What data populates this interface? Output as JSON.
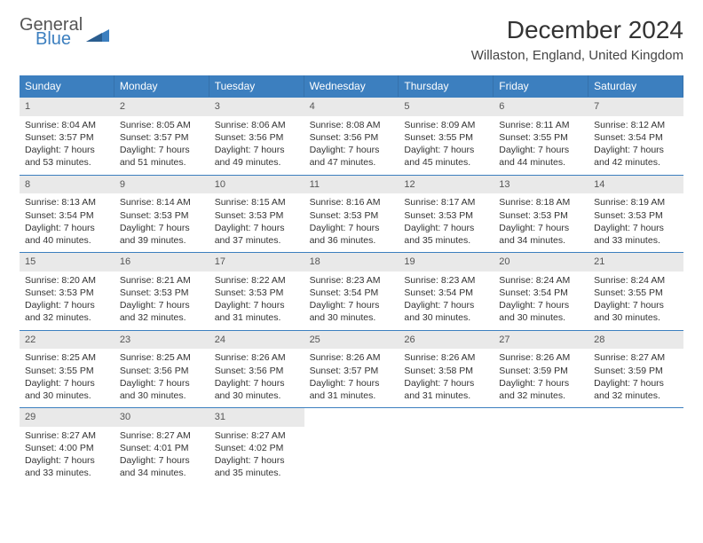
{
  "logo": {
    "general": "General",
    "blue": "Blue"
  },
  "title": "December 2024",
  "location": "Willaston, England, United Kingdom",
  "colors": {
    "header_bg": "#3c7fbf",
    "header_text": "#ffffff",
    "daynum_bg": "#e9e9e9",
    "border": "#3c7fbf",
    "body_text": "#333333"
  },
  "daysOfWeek": [
    "Sunday",
    "Monday",
    "Tuesday",
    "Wednesday",
    "Thursday",
    "Friday",
    "Saturday"
  ],
  "cells": [
    {
      "n": "1",
      "sr": "8:04 AM",
      "ss": "3:57 PM",
      "dl": "7 hours and 53 minutes."
    },
    {
      "n": "2",
      "sr": "8:05 AM",
      "ss": "3:57 PM",
      "dl": "7 hours and 51 minutes."
    },
    {
      "n": "3",
      "sr": "8:06 AM",
      "ss": "3:56 PM",
      "dl": "7 hours and 49 minutes."
    },
    {
      "n": "4",
      "sr": "8:08 AM",
      "ss": "3:56 PM",
      "dl": "7 hours and 47 minutes."
    },
    {
      "n": "5",
      "sr": "8:09 AM",
      "ss": "3:55 PM",
      "dl": "7 hours and 45 minutes."
    },
    {
      "n": "6",
      "sr": "8:11 AM",
      "ss": "3:55 PM",
      "dl": "7 hours and 44 minutes."
    },
    {
      "n": "7",
      "sr": "8:12 AM",
      "ss": "3:54 PM",
      "dl": "7 hours and 42 minutes."
    },
    {
      "n": "8",
      "sr": "8:13 AM",
      "ss": "3:54 PM",
      "dl": "7 hours and 40 minutes."
    },
    {
      "n": "9",
      "sr": "8:14 AM",
      "ss": "3:53 PM",
      "dl": "7 hours and 39 minutes."
    },
    {
      "n": "10",
      "sr": "8:15 AM",
      "ss": "3:53 PM",
      "dl": "7 hours and 37 minutes."
    },
    {
      "n": "11",
      "sr": "8:16 AM",
      "ss": "3:53 PM",
      "dl": "7 hours and 36 minutes."
    },
    {
      "n": "12",
      "sr": "8:17 AM",
      "ss": "3:53 PM",
      "dl": "7 hours and 35 minutes."
    },
    {
      "n": "13",
      "sr": "8:18 AM",
      "ss": "3:53 PM",
      "dl": "7 hours and 34 minutes."
    },
    {
      "n": "14",
      "sr": "8:19 AM",
      "ss": "3:53 PM",
      "dl": "7 hours and 33 minutes."
    },
    {
      "n": "15",
      "sr": "8:20 AM",
      "ss": "3:53 PM",
      "dl": "7 hours and 32 minutes."
    },
    {
      "n": "16",
      "sr": "8:21 AM",
      "ss": "3:53 PM",
      "dl": "7 hours and 32 minutes."
    },
    {
      "n": "17",
      "sr": "8:22 AM",
      "ss": "3:53 PM",
      "dl": "7 hours and 31 minutes."
    },
    {
      "n": "18",
      "sr": "8:23 AM",
      "ss": "3:54 PM",
      "dl": "7 hours and 30 minutes."
    },
    {
      "n": "19",
      "sr": "8:23 AM",
      "ss": "3:54 PM",
      "dl": "7 hours and 30 minutes."
    },
    {
      "n": "20",
      "sr": "8:24 AM",
      "ss": "3:54 PM",
      "dl": "7 hours and 30 minutes."
    },
    {
      "n": "21",
      "sr": "8:24 AM",
      "ss": "3:55 PM",
      "dl": "7 hours and 30 minutes."
    },
    {
      "n": "22",
      "sr": "8:25 AM",
      "ss": "3:55 PM",
      "dl": "7 hours and 30 minutes."
    },
    {
      "n": "23",
      "sr": "8:25 AM",
      "ss": "3:56 PM",
      "dl": "7 hours and 30 minutes."
    },
    {
      "n": "24",
      "sr": "8:26 AM",
      "ss": "3:56 PM",
      "dl": "7 hours and 30 minutes."
    },
    {
      "n": "25",
      "sr": "8:26 AM",
      "ss": "3:57 PM",
      "dl": "7 hours and 31 minutes."
    },
    {
      "n": "26",
      "sr": "8:26 AM",
      "ss": "3:58 PM",
      "dl": "7 hours and 31 minutes."
    },
    {
      "n": "27",
      "sr": "8:26 AM",
      "ss": "3:59 PM",
      "dl": "7 hours and 32 minutes."
    },
    {
      "n": "28",
      "sr": "8:27 AM",
      "ss": "3:59 PM",
      "dl": "7 hours and 32 minutes."
    },
    {
      "n": "29",
      "sr": "8:27 AM",
      "ss": "4:00 PM",
      "dl": "7 hours and 33 minutes."
    },
    {
      "n": "30",
      "sr": "8:27 AM",
      "ss": "4:01 PM",
      "dl": "7 hours and 34 minutes."
    },
    {
      "n": "31",
      "sr": "8:27 AM",
      "ss": "4:02 PM",
      "dl": "7 hours and 35 minutes."
    }
  ],
  "labels": {
    "sunrise": "Sunrise:",
    "sunset": "Sunset:",
    "daylight": "Daylight:"
  }
}
